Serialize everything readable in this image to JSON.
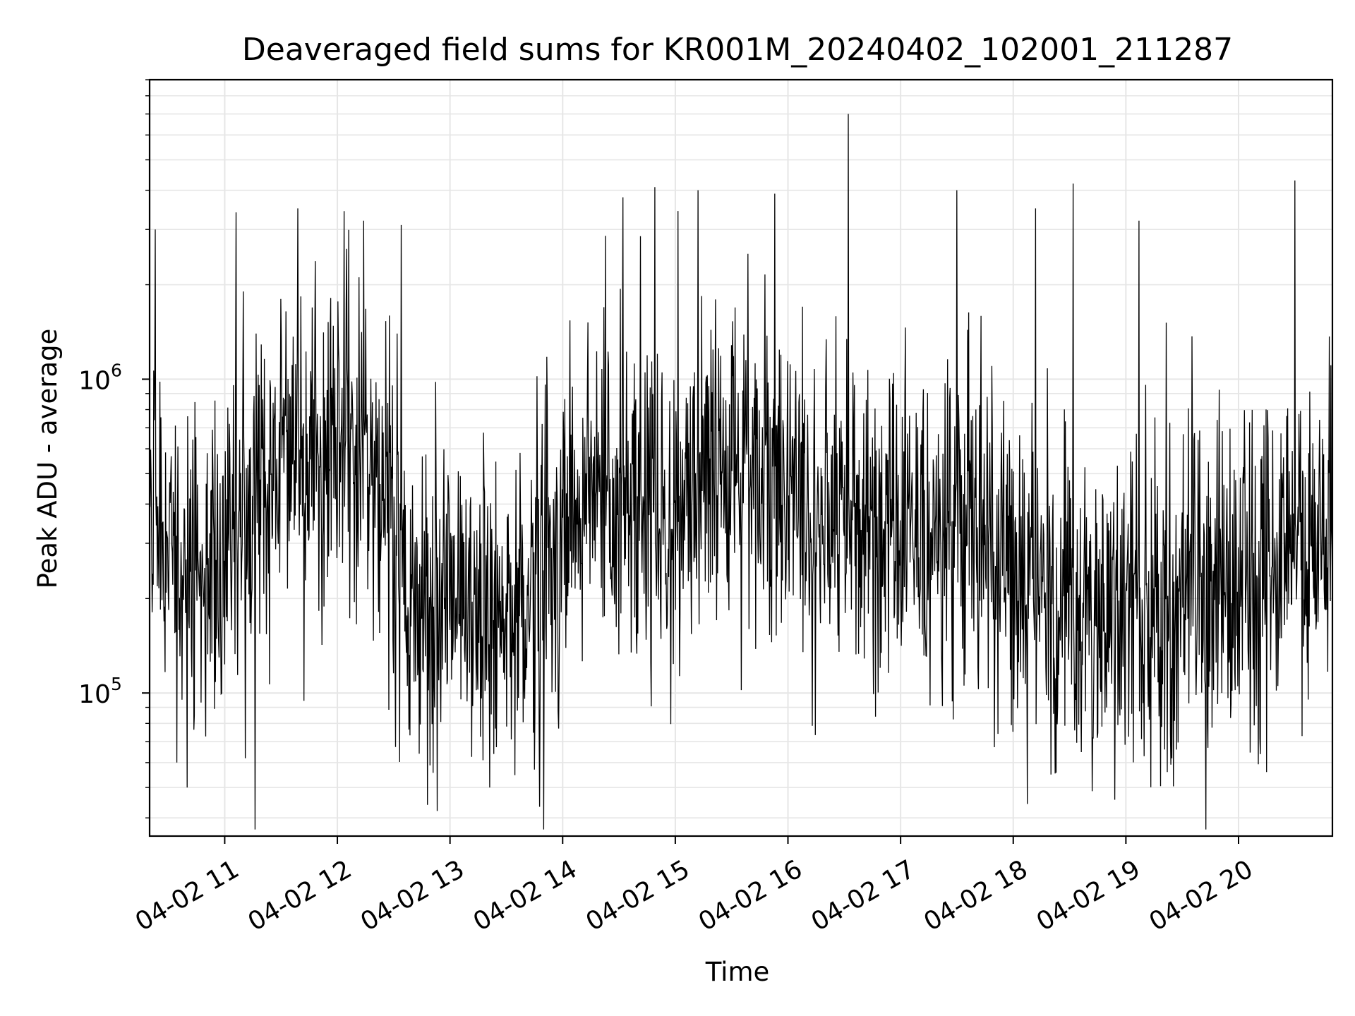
{
  "chart_data": {
    "type": "line",
    "title": "Deaveraged field sums for KR001M_20240402_102001_211287",
    "xlabel": "Time",
    "ylabel": "Peak ADU - average",
    "yscale": "log",
    "ylim": [
      35000,
      9000000
    ],
    "xlim": [
      "2024-04-02 10:20",
      "2024-04-02 20:50"
    ],
    "grid": true,
    "x_tick_labels": [
      "04-02 11",
      "04-02 12",
      "04-02 13",
      "04-02 14",
      "04-02 15",
      "04-02 16",
      "04-02 17",
      "04-02 18",
      "04-02 19",
      "04-02 20"
    ],
    "y_tick_labels": [
      {
        "base": "10",
        "exp": "5",
        "value": 100000
      },
      {
        "base": "10",
        "exp": "6",
        "value": 1000000
      }
    ],
    "line_color": "#000000",
    "series": [
      {
        "time_unit": "hours",
        "x": [
          "10:20",
          "10:35",
          "10:50",
          "11:05",
          "11:20",
          "11:35",
          "11:50",
          "12:05",
          "12:20",
          "12:35",
          "12:50",
          "13:05",
          "13:20",
          "13:35",
          "13:50",
          "14:05",
          "14:20",
          "14:35",
          "14:50",
          "15:05",
          "15:20",
          "15:35",
          "15:50",
          "16:05",
          "16:20",
          "16:35",
          "16:50",
          "17:05",
          "17:20",
          "17:35",
          "17:50",
          "18:05",
          "18:20",
          "18:35",
          "18:50",
          "19:05",
          "19:20",
          "19:35",
          "19:50",
          "20:05",
          "20:20",
          "20:35",
          "20:50"
        ],
        "median_values": [
          400000,
          280000,
          220000,
          300000,
          420000,
          560000,
          620000,
          680000,
          560000,
          200000,
          170000,
          210000,
          170000,
          190000,
          210000,
          360000,
          420000,
          430000,
          380000,
          420000,
          480000,
          500000,
          470000,
          460000,
          420000,
          380000,
          330000,
          330000,
          330000,
          370000,
          300000,
          230000,
          180000,
          180000,
          170000,
          190000,
          190000,
          210000,
          200000,
          200000,
          240000,
          330000,
          420000
        ],
        "peaks": [
          {
            "t": "10:23",
            "v": 3000000
          },
          {
            "t": "11:06",
            "v": 3400000
          },
          {
            "t": "11:39",
            "v": 3500000
          },
          {
            "t": "12:14",
            "v": 3200000
          },
          {
            "t": "12:34",
            "v": 3100000
          },
          {
            "t": "14:32",
            "v": 3800000
          },
          {
            "t": "15:12",
            "v": 4000000
          },
          {
            "t": "15:53",
            "v": 3900000
          },
          {
            "t": "16:32",
            "v": 7000000
          },
          {
            "t": "17:30",
            "v": 4000000
          },
          {
            "t": "18:12",
            "v": 3500000
          },
          {
            "t": "18:32",
            "v": 4200000
          },
          {
            "t": "19:07",
            "v": 3200000
          },
          {
            "t": "20:30",
            "v": 4300000
          }
        ],
        "troughs": [
          {
            "t": "10:40",
            "v": 50000
          },
          {
            "t": "12:48",
            "v": 44000
          },
          {
            "t": "13:21",
            "v": 50000
          },
          {
            "t": "13:45",
            "v": 57000
          },
          {
            "t": "18:20",
            "v": 55000
          },
          {
            "t": "19:22",
            "v": 56000
          },
          {
            "t": "20:15",
            "v": 56000
          }
        ]
      }
    ]
  }
}
